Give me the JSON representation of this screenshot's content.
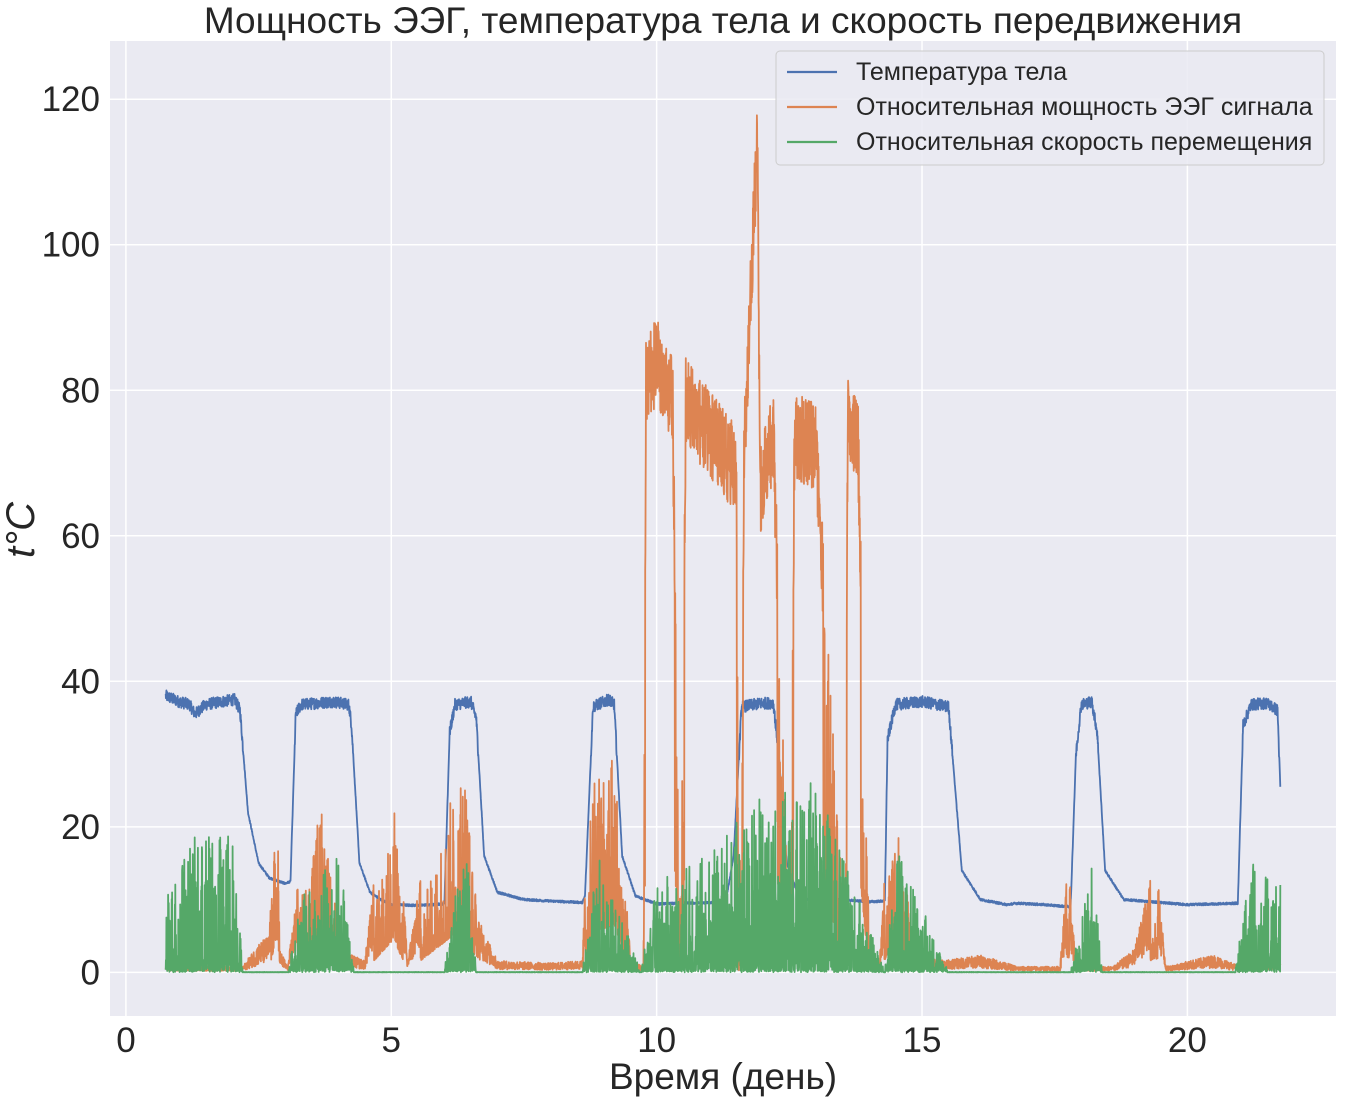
{
  "chart_data": {
    "type": "line",
    "title": "Мощность ЭЭГ, температура тела и скорость передвижения",
    "xlabel": "Время (день)",
    "ylabel": "t°C",
    "xlim": [
      -0.3,
      22.8
    ],
    "ylim": [
      -6,
      128
    ],
    "xticks": [
      0,
      5,
      10,
      15,
      20
    ],
    "yticks": [
      0,
      20,
      40,
      60,
      80,
      100,
      120
    ],
    "grid": true,
    "legend_position": "top-right",
    "background_color": "#eaeaf2",
    "series": [
      {
        "name": "Температура тела",
        "color": "#4c72b0",
        "keypoints": [
          [
            0.75,
            38.0
          ],
          [
            1.0,
            37.2
          ],
          [
            1.2,
            36.8
          ],
          [
            1.3,
            35.5
          ],
          [
            1.5,
            36.8
          ],
          [
            1.8,
            37.2
          ],
          [
            2.05,
            37.5
          ],
          [
            2.15,
            36.0
          ],
          [
            2.3,
            22.0
          ],
          [
            2.5,
            15.0
          ],
          [
            2.7,
            13.0
          ],
          [
            3.0,
            12.2
          ],
          [
            3.1,
            12.5
          ],
          [
            3.2,
            35.5
          ],
          [
            3.3,
            36.8
          ],
          [
            3.6,
            37.0
          ],
          [
            3.9,
            37.2
          ],
          [
            4.2,
            36.8
          ],
          [
            4.25,
            34.0
          ],
          [
            4.4,
            15.0
          ],
          [
            4.6,
            11.0
          ],
          [
            4.8,
            10.0
          ],
          [
            5.0,
            9.3
          ],
          [
            5.5,
            9.2
          ],
          [
            6.0,
            9.4
          ],
          [
            6.1,
            33.0
          ],
          [
            6.2,
            36.8
          ],
          [
            6.5,
            37.2
          ],
          [
            6.6,
            35.0
          ],
          [
            6.75,
            16.0
          ],
          [
            7.0,
            11.0
          ],
          [
            7.5,
            10.0
          ],
          [
            8.0,
            9.8
          ],
          [
            8.6,
            9.6
          ],
          [
            8.65,
            10.5
          ],
          [
            8.8,
            36.5
          ],
          [
            9.1,
            37.5
          ],
          [
            9.2,
            36.8
          ],
          [
            9.35,
            16.0
          ],
          [
            9.6,
            10.5
          ],
          [
            10.0,
            9.4
          ],
          [
            10.5,
            9.5
          ],
          [
            11.3,
            9.6
          ],
          [
            11.45,
            16.0
          ],
          [
            11.6,
            36.5
          ],
          [
            12.0,
            37.0
          ],
          [
            12.2,
            37.0
          ],
          [
            12.3,
            30.0
          ],
          [
            12.45,
            15.0
          ],
          [
            12.7,
            10.0
          ],
          [
            13.0,
            10.0
          ],
          [
            13.5,
            10.0
          ],
          [
            14.0,
            9.7
          ],
          [
            14.3,
            9.8
          ],
          [
            14.35,
            32.0
          ],
          [
            14.5,
            36.8
          ],
          [
            15.0,
            37.2
          ],
          [
            15.5,
            36.5
          ],
          [
            15.55,
            32.0
          ],
          [
            15.75,
            14.0
          ],
          [
            16.1,
            10.0
          ],
          [
            16.6,
            9.3
          ],
          [
            16.8,
            9.5
          ],
          [
            17.3,
            9.3
          ],
          [
            17.8,
            9.0
          ],
          [
            17.9,
            30.0
          ],
          [
            18.0,
            36.8
          ],
          [
            18.2,
            37.2
          ],
          [
            18.3,
            33.0
          ],
          [
            18.45,
            14.0
          ],
          [
            18.8,
            10.0
          ],
          [
            19.5,
            9.6
          ],
          [
            20.0,
            9.3
          ],
          [
            20.5,
            9.4
          ],
          [
            20.95,
            9.5
          ],
          [
            21.05,
            34.0
          ],
          [
            21.2,
            36.8
          ],
          [
            21.5,
            37.0
          ],
          [
            21.7,
            36.0
          ],
          [
            21.75,
            25.5
          ]
        ]
      },
      {
        "name": "Относительная мощность ЭЭГ сигнала",
        "color": "#dd8452",
        "keypoints": [
          [
            0.75,
            0.5
          ],
          [
            2.2,
            0.5
          ],
          [
            2.5,
            2.5
          ],
          [
            2.7,
            3.2
          ],
          [
            2.85,
            25.5
          ],
          [
            2.9,
            2.0
          ],
          [
            3.05,
            0.5
          ],
          [
            3.7,
            25.0
          ],
          [
            4.0,
            2.0
          ],
          [
            4.5,
            1.0
          ],
          [
            5.05,
            23.0
          ],
          [
            5.3,
            1.0
          ],
          [
            6.4,
            32.0
          ],
          [
            6.6,
            5.0
          ],
          [
            7.0,
            1.0
          ],
          [
            8.0,
            0.8
          ],
          [
            8.6,
            1.0
          ],
          [
            8.8,
            27.0
          ],
          [
            9.2,
            33.0
          ],
          [
            9.5,
            1.0
          ],
          [
            9.75,
            0.5
          ],
          [
            9.8,
            87.0
          ],
          [
            10.0,
            90.0
          ],
          [
            10.3,
            85.0
          ],
          [
            10.45,
            0.5
          ],
          [
            10.55,
            85.0
          ],
          [
            10.8,
            82.0
          ],
          [
            11.0,
            80.0
          ],
          [
            11.5,
            75.0
          ],
          [
            11.55,
            0.5
          ],
          [
            11.65,
            78.0
          ],
          [
            11.9,
            122.0
          ],
          [
            11.95,
            72.0
          ],
          [
            12.2,
            80.0
          ],
          [
            12.5,
            1.0
          ],
          [
            12.6,
            80.0
          ],
          [
            13.0,
            78.0
          ],
          [
            13.55,
            4.0
          ],
          [
            13.6,
            82.0
          ],
          [
            13.8,
            78.0
          ],
          [
            14.0,
            1.0
          ],
          [
            14.2,
            1.0
          ],
          [
            14.5,
            24.0
          ],
          [
            14.8,
            2.0
          ],
          [
            15.4,
            1.0
          ],
          [
            16.1,
            1.5
          ],
          [
            16.8,
            0.5
          ],
          [
            17.6,
            0.5
          ],
          [
            17.75,
            10.0
          ],
          [
            17.9,
            0.5
          ],
          [
            18.6,
            0.5
          ],
          [
            19.0,
            2.0
          ],
          [
            19.4,
            10.0
          ],
          [
            19.6,
            0.5
          ],
          [
            20.5,
            1.5
          ],
          [
            21.0,
            0.5
          ],
          [
            21.75,
            1.0
          ]
        ]
      },
      {
        "name": "Относительная скорость перемещения",
        "color": "#55a868",
        "keypoints": [
          [
            0.75,
            12.0
          ],
          [
            1.2,
            18.0
          ],
          [
            1.8,
            20.0
          ],
          [
            2.05,
            20.0
          ],
          [
            2.2,
            0.0
          ],
          [
            3.05,
            0.0
          ],
          [
            3.3,
            10.0
          ],
          [
            4.0,
            17.0
          ],
          [
            4.3,
            0.0
          ],
          [
            6.0,
            0.0
          ],
          [
            6.4,
            20.0
          ],
          [
            6.6,
            0.0
          ],
          [
            8.6,
            0.0
          ],
          [
            8.9,
            16.0
          ],
          [
            9.3,
            8.0
          ],
          [
            9.7,
            0.0
          ],
          [
            10.0,
            12.0
          ],
          [
            11.0,
            17.0
          ],
          [
            12.0,
            24.0
          ],
          [
            13.0,
            26.0
          ],
          [
            13.8,
            10.0
          ],
          [
            14.3,
            0.0
          ],
          [
            14.5,
            18.0
          ],
          [
            15.5,
            0.0
          ],
          [
            17.8,
            0.0
          ],
          [
            18.2,
            15.0
          ],
          [
            18.4,
            0.0
          ],
          [
            20.9,
            0.0
          ],
          [
            21.2,
            15.0
          ],
          [
            21.75,
            12.0
          ]
        ]
      }
    ]
  }
}
